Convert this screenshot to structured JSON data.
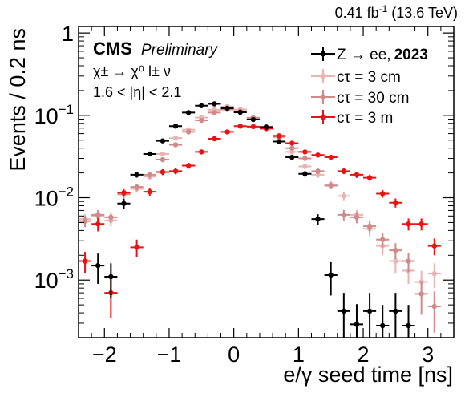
{
  "chart_data": {
    "type": "scatter",
    "top_label": "0.41 fb⁻¹ (13.6 TeV)",
    "cms_label": "CMS",
    "preliminary_label": "Preliminary",
    "process_label": "χ± → χ⁰ l± ν",
    "eta_label": "1.6 < |η| < 2.1",
    "xlabel": "e/γ seed time [ns]",
    "ylabel": "Events / 0.2 ns",
    "xlim": [
      -2.4,
      3.4
    ],
    "ylim": [
      0.0002,
      1.2
    ],
    "yscale": "log",
    "x_ticks": [
      -2,
      -1,
      0,
      1,
      2,
      3
    ],
    "x_tick_labels": [
      "−2",
      "−1",
      "0",
      "1",
      "2",
      "3"
    ],
    "y_ticks": [
      0.001,
      0.01,
      0.1,
      1
    ],
    "y_tick_labels": [
      {
        "base": "10",
        "exp": "−3"
      },
      {
        "base": "10",
        "exp": "−2"
      },
      {
        "base": "10",
        "exp": "−1"
      },
      {
        "base": "1",
        "exp": ""
      }
    ],
    "bin_width": 0.2,
    "legend_position": "top-right",
    "series": [
      {
        "name": "Z → ee,",
        "name_bold": "2023",
        "color": "#000000",
        "x": [
          -2.1,
          -1.9,
          -1.7,
          -1.5,
          -1.3,
          -1.1,
          -0.9,
          -0.7,
          -0.5,
          -0.3,
          -0.1,
          0.1,
          0.3,
          0.5,
          0.7,
          0.9,
          1.1,
          1.3,
          1.5,
          1.7,
          1.9,
          2.1,
          2.3,
          2.5,
          2.7
        ],
        "y": [
          0.0015,
          0.0011,
          0.0085,
          0.019,
          0.034,
          0.049,
          0.074,
          0.108,
          0.131,
          0.138,
          0.122,
          0.109,
          0.089,
          0.072,
          0.048,
          0.031,
          0.0195,
          0.0055,
          0.00115,
          0.00042,
          0.00029,
          0.00042,
          0.00028,
          0.00042,
          0.00028
        ],
        "yerr": [
          0.0006,
          0.0005,
          0.0012,
          0.0015,
          0.002,
          0.0025,
          0.003,
          0.0035,
          0.004,
          0.004,
          0.0038,
          0.0036,
          0.0032,
          0.0028,
          0.0024,
          0.0019,
          0.0015,
          0.0008,
          0.0005,
          0.00028,
          0.00022,
          0.00028,
          0.00022,
          0.00028,
          0.00022
        ]
      },
      {
        "name": "cτ = 3 cm",
        "color": "#e8b4b4",
        "x": [
          -2.3,
          -2.1,
          -1.9,
          -1.7,
          -1.5,
          -1.3,
          -1.1,
          -0.9,
          -0.7,
          -0.5,
          -0.3,
          -0.1,
          0.1,
          0.3,
          0.5,
          0.7,
          0.9,
          1.1,
          1.3,
          1.5,
          1.7,
          1.9,
          2.1,
          2.3,
          2.5,
          2.7,
          2.9,
          3.1
        ],
        "y": [
          0.0055,
          0.006,
          0.0053,
          0.0115,
          0.0128,
          0.018,
          0.034,
          0.053,
          0.067,
          0.094,
          0.117,
          0.128,
          0.118,
          0.094,
          0.072,
          0.054,
          0.036,
          0.024,
          0.019,
          0.0145,
          0.0105,
          0.0062,
          0.0042,
          0.0026,
          0.0017,
          0.0013,
          0.00095,
          0.0012
        ],
        "yerr": [
          0.0008,
          0.0009,
          0.0008,
          0.0012,
          0.0013,
          0.0016,
          0.0022,
          0.0028,
          0.003,
          0.0036,
          0.004,
          0.004,
          0.004,
          0.0036,
          0.003,
          0.0028,
          0.0022,
          0.0018,
          0.0016,
          0.0014,
          0.0012,
          0.0009,
          0.0008,
          0.0006,
          0.0005,
          0.0004,
          0.00035,
          0.0004
        ]
      },
      {
        "name": "cτ = 30 cm",
        "color": "#d08a8a",
        "x": [
          -2.3,
          -2.1,
          -1.9,
          -1.7,
          -1.5,
          -1.3,
          -1.1,
          -0.9,
          -0.7,
          -0.5,
          -0.3,
          -0.1,
          0.1,
          0.3,
          0.5,
          0.7,
          0.9,
          1.1,
          1.3,
          1.5,
          1.7,
          1.9,
          2.1,
          2.3,
          2.5,
          2.7,
          2.9,
          3.1
        ],
        "y": [
          0.0052,
          0.0062,
          0.0058,
          0.011,
          0.0135,
          0.019,
          0.029,
          0.044,
          0.063,
          0.087,
          0.108,
          0.118,
          0.112,
          0.093,
          0.073,
          0.057,
          0.04,
          0.03,
          0.021,
          0.014,
          0.0062,
          0.0058,
          0.0045,
          0.0031,
          0.0023,
          0.0017,
          0.00068,
          0.00048
        ],
        "yerr": [
          0.0008,
          0.0009,
          0.0008,
          0.0012,
          0.0013,
          0.0016,
          0.002,
          0.0025,
          0.003,
          0.0035,
          0.0038,
          0.004,
          0.004,
          0.0036,
          0.0032,
          0.0028,
          0.0024,
          0.002,
          0.0017,
          0.0014,
          0.0009,
          0.0009,
          0.0008,
          0.0006,
          0.0005,
          0.00045,
          0.0003,
          0.00025
        ]
      },
      {
        "name": "cτ = 3 m",
        "color": "#ee1111",
        "x": [
          -2.3,
          -2.1,
          -1.9,
          -1.7,
          -1.5,
          -1.3,
          -1.1,
          -0.9,
          -0.7,
          -0.5,
          -0.3,
          -0.1,
          0.1,
          0.3,
          0.5,
          0.7,
          0.9,
          1.1,
          1.3,
          1.5,
          1.7,
          1.9,
          2.1,
          2.3,
          2.5,
          2.7,
          2.9,
          3.1
        ],
        "y": [
          0.0017,
          0.0048,
          0.0007,
          0.0115,
          0.0025,
          0.0118,
          0.0205,
          0.021,
          0.0245,
          0.036,
          0.052,
          0.063,
          0.074,
          0.073,
          0.069,
          0.056,
          0.046,
          0.036,
          0.033,
          0.031,
          0.021,
          0.019,
          0.0175,
          0.0112,
          0.0087,
          0.0048,
          0.0048,
          0.0026
        ],
        "yerr": [
          0.0005,
          0.0009,
          0.00035,
          0.0012,
          0.0006,
          0.0013,
          0.0017,
          0.0018,
          0.002,
          0.0024,
          0.0028,
          0.003,
          0.0032,
          0.0032,
          0.003,
          0.0028,
          0.0025,
          0.0022,
          0.0021,
          0.002,
          0.0017,
          0.0016,
          0.0015,
          0.0012,
          0.0011,
          0.0008,
          0.0008,
          0.0006
        ]
      }
    ]
  }
}
